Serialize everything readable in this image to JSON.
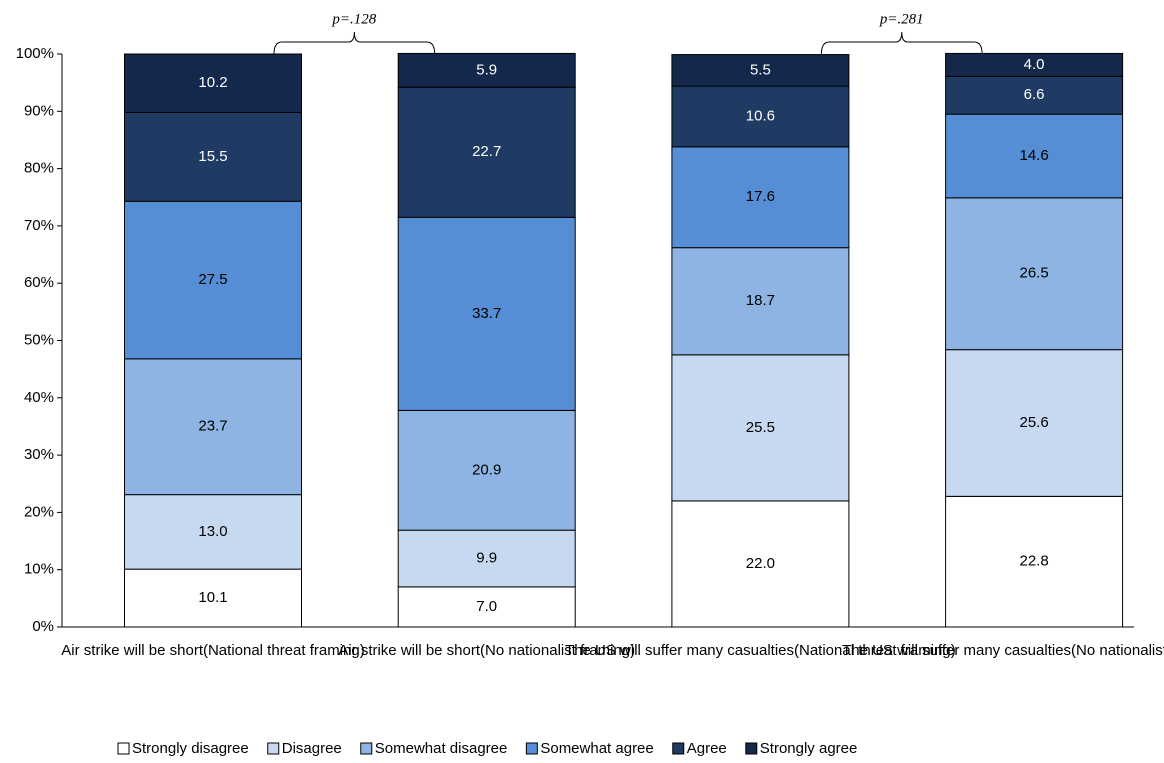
{
  "chart_data": {
    "type": "stacked_bar",
    "categories": [
      "Air strike will be short(National threat framing)",
      "Air strike will be short(No nationalist framing)",
      "The US will suffer many casualties(National threat framing)",
      "The US will suffer many casualties(No nationalist framing)"
    ],
    "series": [
      {
        "name": "Strongly disagree",
        "color": "#ffffff",
        "values": [
          10.1,
          7.0,
          22.0,
          22.8
        ],
        "value_labels": [
          "10.1",
          "7.0",
          "22.0",
          "22.8"
        ]
      },
      {
        "name": "Disagree",
        "color": "#c6d9f1",
        "values": [
          13.0,
          9.9,
          25.5,
          25.6
        ],
        "value_labels": [
          "13.0",
          "9.9",
          "25.5",
          "25.6"
        ]
      },
      {
        "name": "Somewhat disagree",
        "color": "#8eb4e3",
        "values": [
          23.7,
          20.9,
          18.7,
          26.5
        ],
        "value_labels": [
          "23.7",
          "20.9",
          "18.7",
          "26.5"
        ]
      },
      {
        "name": "Somewhat agree",
        "color": "#558ed5",
        "values": [
          27.5,
          33.7,
          17.6,
          14.6
        ],
        "value_labels": [
          "27.5",
          "33.7",
          "17.6",
          "14.6"
        ]
      },
      {
        "name": "Agree",
        "color": "#1f3b64",
        "values": [
          15.5,
          22.7,
          10.6,
          6.6
        ],
        "value_labels": [
          "15.5",
          "22.7",
          "10.6",
          "6.6"
        ]
      },
      {
        "name": "Strongly agree",
        "color": "#13284a",
        "values": [
          10.2,
          5.9,
          5.5,
          4.0
        ],
        "value_labels": [
          "10.2",
          "5.9",
          "5.5",
          "4.0"
        ]
      }
    ],
    "annotations": [
      "p=.128",
      "p=.281"
    ],
    "ylim": [
      0,
      100
    ],
    "yticks": [
      {
        "value": 0,
        "label": "0%"
      },
      {
        "value": 10,
        "label": "10%"
      },
      {
        "value": 20,
        "label": "20%"
      },
      {
        "value": 30,
        "label": "30%"
      },
      {
        "value": 40,
        "label": "40%"
      },
      {
        "value": 50,
        "label": "50%"
      },
      {
        "value": 60,
        "label": "60%"
      },
      {
        "value": 70,
        "label": "70%"
      },
      {
        "value": 80,
        "label": "80%"
      },
      {
        "value": 90,
        "label": "90%"
      },
      {
        "value": 100,
        "label": "100%"
      }
    ],
    "legend": "bottom"
  }
}
